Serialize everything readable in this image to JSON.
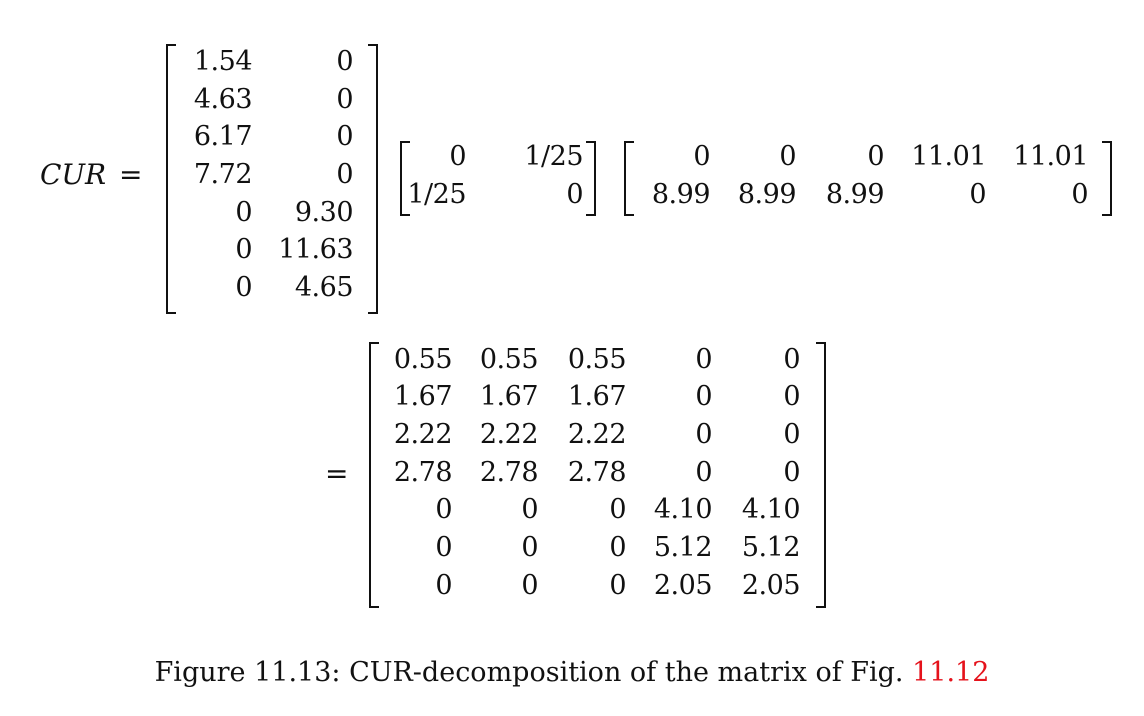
{
  "equation": {
    "lhs_label": "CUR",
    "equals": "=",
    "C": [
      [
        "1.54",
        "0"
      ],
      [
        "4.63",
        "0"
      ],
      [
        "6.17",
        "0"
      ],
      [
        "7.72",
        "0"
      ],
      [
        "0",
        "9.30"
      ],
      [
        "0",
        "11.63"
      ],
      [
        "0",
        "4.65"
      ]
    ],
    "U": [
      [
        "0",
        "1/25"
      ],
      [
        "1/25",
        "0"
      ]
    ],
    "R": [
      [
        "0",
        "0",
        "0",
        "11.01",
        "11.01"
      ],
      [
        "8.99",
        "8.99",
        "8.99",
        "0",
        "0"
      ]
    ],
    "result_equals": "=",
    "result": [
      [
        "0.55",
        "0.55",
        "0.55",
        "0",
        "0"
      ],
      [
        "1.67",
        "1.67",
        "1.67",
        "0",
        "0"
      ],
      [
        "2.22",
        "2.22",
        "2.22",
        "0",
        "0"
      ],
      [
        "2.78",
        "2.78",
        "2.78",
        "0",
        "0"
      ],
      [
        "0",
        "0",
        "0",
        "4.10",
        "4.10"
      ],
      [
        "0",
        "0",
        "0",
        "5.12",
        "5.12"
      ],
      [
        "0",
        "0",
        "0",
        "2.05",
        "2.05"
      ]
    ]
  },
  "caption": {
    "text": "Figure 11.13: CUR-decomposition of the matrix of Fig. ",
    "ref": "11.12"
  }
}
